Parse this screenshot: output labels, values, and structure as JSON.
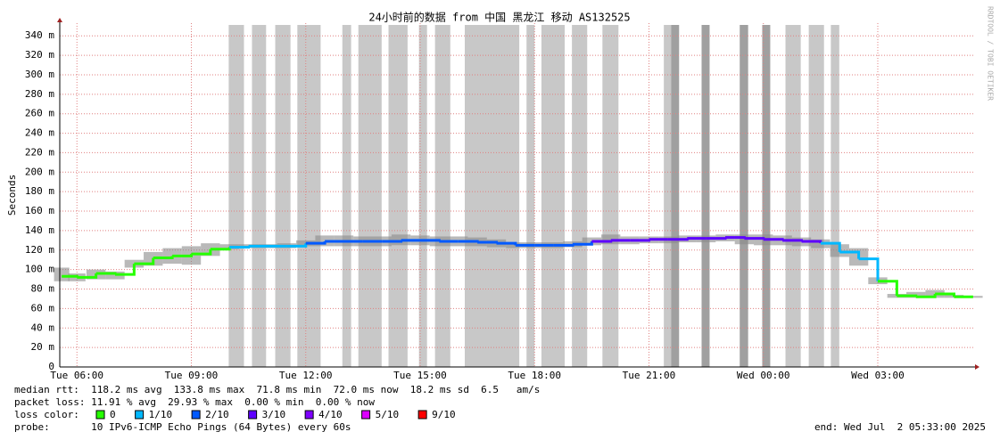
{
  "chart_data": {
    "type": "line",
    "title": "24小时前的数据 from 中国 黑龙江 移动 AS132525",
    "y_label": "Seconds",
    "watermark": "RRDTOOL / TOBI OETIKER",
    "xlim": [
      5.55,
      29.55
    ],
    "xticks": [
      {
        "value": 6,
        "label": "Tue 06:00"
      },
      {
        "value": 9,
        "label": "Tue 09:00"
      },
      {
        "value": 12,
        "label": "Tue 12:00"
      },
      {
        "value": 15,
        "label": "Tue 15:00"
      },
      {
        "value": 18,
        "label": "Tue 18:00"
      },
      {
        "value": 21,
        "label": "Tue 21:00"
      },
      {
        "value": 24,
        "label": "Wed 00:00"
      },
      {
        "value": 27,
        "label": "Wed 03:00"
      }
    ],
    "ylim": [
      0,
      353
    ],
    "yticks": [
      0,
      {
        "value": 20,
        "label": "20 m"
      },
      {
        "value": 40,
        "label": "40 m"
      },
      {
        "value": 60,
        "label": "60 m"
      },
      {
        "value": 80,
        "label": "80 m"
      },
      {
        "value": 100,
        "label": "100 m"
      },
      {
        "value": 120,
        "label": "120 m"
      },
      {
        "value": 140,
        "label": "140 m"
      },
      {
        "value": 160,
        "label": "160 m"
      },
      {
        "value": 180,
        "label": "180 m"
      },
      {
        "value": 200,
        "label": "200 m"
      },
      {
        "value": 220,
        "label": "220 m"
      },
      {
        "value": 240,
        "label": "240 m"
      },
      {
        "value": 260,
        "label": "260 m"
      },
      {
        "value": 280,
        "label": "280 m"
      },
      {
        "value": 300,
        "label": "300 m"
      },
      {
        "value": 320,
        "label": "320 m"
      },
      {
        "value": 340,
        "label": "340 m"
      }
    ],
    "grid": true,
    "band_color": "#c8c8c8",
    "dark_band_color": "#a0a0a0",
    "smoke_color": "#8a8a8a",
    "bands": [
      [
        9.98,
        10.38
      ],
      [
        10.59,
        10.96
      ],
      [
        11.2,
        11.6
      ],
      [
        11.78,
        12.39
      ],
      [
        12.96,
        13.19
      ],
      [
        13.38,
        13.99
      ],
      [
        14.17,
        14.67
      ],
      [
        14.97,
        15.18
      ],
      [
        15.39,
        15.79
      ],
      [
        16.17,
        17.6
      ],
      [
        17.79,
        18.0
      ],
      [
        18.18,
        18.79
      ],
      [
        18.98,
        19.38
      ],
      [
        19.78,
        20.2
      ],
      [
        21.39,
        21.58
      ],
      [
        24.58,
        24.98
      ],
      [
        25.19,
        25.59
      ],
      [
        25.77,
        25.99
      ]
    ],
    "dark_bands": [
      [
        21.58,
        21.79
      ],
      [
        22.38,
        22.59
      ],
      [
        23.38,
        23.6
      ],
      [
        23.97,
        24.18
      ]
    ],
    "x": [
      5.6,
      6,
      6.5,
      7,
      7.5,
      8,
      8.5,
      9,
      9.5,
      10,
      10.5,
      11,
      11.5,
      12,
      12.5,
      13,
      13.5,
      14,
      14.5,
      15,
      15.5,
      16,
      16.5,
      17,
      17.5,
      18,
      18.5,
      19,
      19.5,
      20,
      20.5,
      21,
      21.5,
      22,
      22.5,
      23,
      23.5,
      24,
      24.5,
      25,
      25.5,
      26,
      26.5,
      27,
      27.5,
      28,
      28.5,
      29,
      29.5
    ],
    "series": [
      {
        "name": "median rtt",
        "values": [
          93,
          92,
          96,
          95,
          106,
          112,
          114,
          116,
          121,
          123,
          124,
          124,
          124,
          127,
          129,
          129,
          129,
          129,
          130,
          130,
          129,
          129,
          128,
          127,
          125,
          125,
          125,
          126,
          129,
          130,
          130,
          131,
          131,
          132,
          132,
          133,
          132,
          131,
          130,
          129,
          127,
          118,
          111,
          88,
          73,
          72,
          75,
          72,
          72
        ]
      }
    ],
    "loss_index": [
      0,
      0,
      0,
      0,
      0,
      0,
      0,
      0,
      0,
      1,
      1,
      1,
      1,
      2,
      2,
      2,
      2,
      2,
      2,
      2,
      2,
      2,
      2,
      2,
      2,
      2,
      2,
      2,
      3,
      3,
      3,
      3,
      3,
      3,
      3,
      3,
      3,
      3,
      3,
      3,
      1,
      1,
      1,
      0,
      0,
      0,
      0,
      0,
      0
    ],
    "smoke_min": [
      88,
      88,
      90,
      90,
      102,
      104,
      106,
      105,
      114,
      121,
      122,
      122,
      122,
      124,
      124,
      124,
      124,
      124,
      125,
      125,
      124,
      124,
      124,
      123,
      122,
      122,
      122,
      123,
      125,
      126,
      126,
      127,
      127,
      128,
      128,
      129,
      126,
      125,
      125,
      124,
      122,
      113,
      104,
      85,
      71,
      71,
      71,
      71,
      71
    ],
    "smoke_max": [
      102,
      96,
      100,
      98,
      110,
      118,
      122,
      124,
      127,
      126,
      126,
      126,
      127,
      130,
      135,
      135,
      134,
      134,
      136,
      135,
      134,
      134,
      133,
      131,
      128,
      128,
      128,
      129,
      133,
      136,
      134,
      134,
      134,
      135,
      135,
      136,
      136,
      136,
      135,
      133,
      131,
      126,
      122,
      92,
      75,
      77,
      79,
      74,
      73
    ],
    "footer": {
      "median": "median rtt:  118.2 ms avg  133.8 ms max  71.8 ms min  72.0 ms now  18.2 ms sd  6.5   am/s",
      "loss": "packet loss: 11.91 % avg  29.93 % max  0.00 % min  0.00 % now",
      "loss_color_label": "loss color:",
      "probe": "probe:       10 IPv6-ICMP Echo Pings (64 Bytes) every 60s",
      "end": "end: Wed Jul  2 05:33:00 2025"
    },
    "legend": [
      {
        "label": "0",
        "color": "#26ff00"
      },
      {
        "label": "1/10",
        "color": "#00b8ff"
      },
      {
        "label": "2/10",
        "color": "#0059ff"
      },
      {
        "label": "3/10",
        "color": "#5e00ff"
      },
      {
        "label": "4/10",
        "color": "#7e00ff"
      },
      {
        "label": "5/10",
        "color": "#dd00ff"
      },
      {
        "label": "9/10",
        "color": "#ff0000"
      }
    ]
  }
}
